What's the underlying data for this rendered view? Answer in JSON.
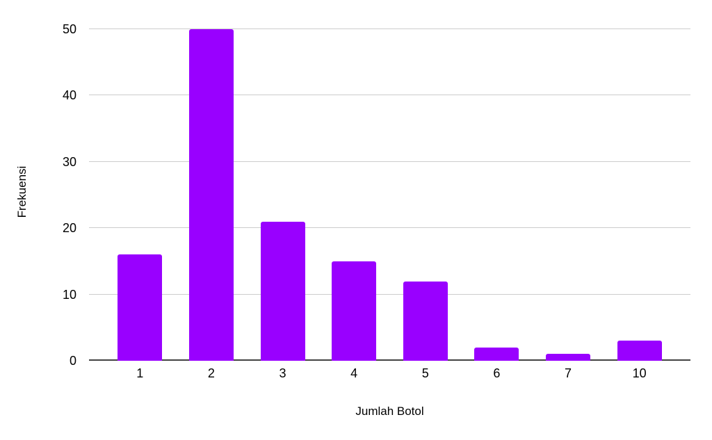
{
  "chart_data": {
    "type": "bar",
    "title": "",
    "categories": [
      "1",
      "2",
      "3",
      "4",
      "5",
      "6",
      "7",
      "10"
    ],
    "values": [
      16,
      50,
      21,
      15,
      12,
      2,
      1,
      3
    ],
    "xlabel": "Jumlah Botol",
    "ylabel": "Frekuensi",
    "ylim": [
      0,
      50
    ],
    "yticks": [
      0,
      10,
      20,
      30,
      40,
      50
    ],
    "grid": true,
    "legend": "none",
    "colors": {
      "bar": "#9900ff",
      "gridline": "#cccccc",
      "axis_line": "#424242",
      "text": "#000000",
      "background": "#ffffff"
    }
  }
}
